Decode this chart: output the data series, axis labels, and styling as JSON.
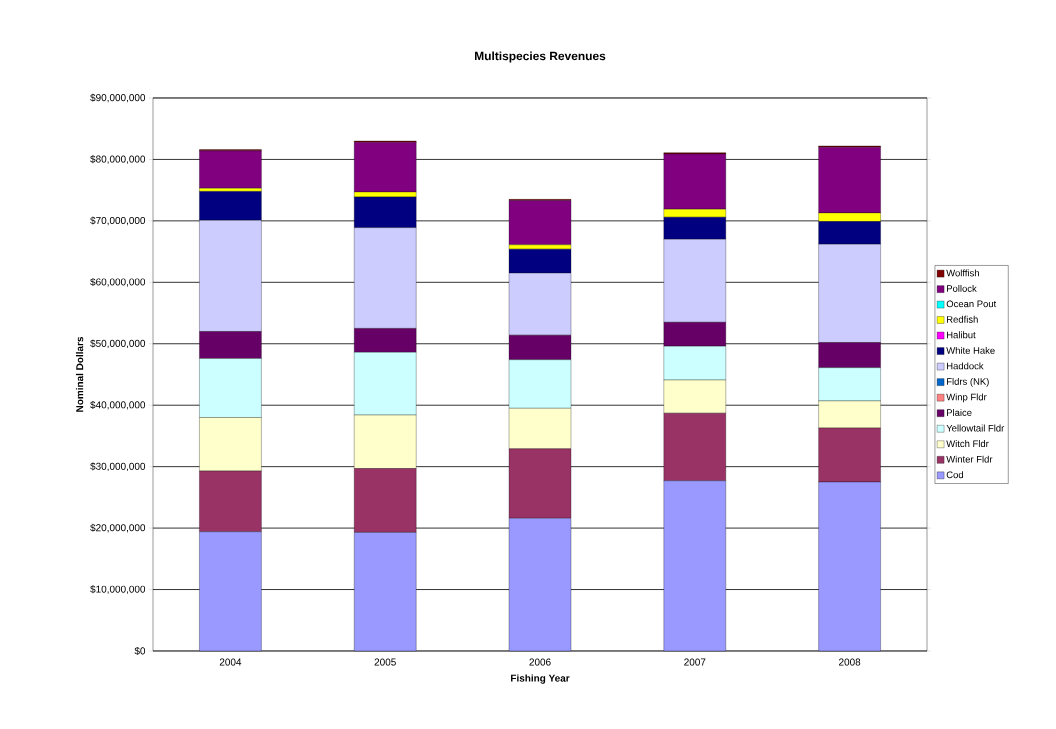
{
  "chart_data": {
    "type": "bar",
    "title": "Multispecies Revenues",
    "xlabel": "Fishing Year",
    "ylabel": "Nominal Dollars",
    "categories": [
      "2004",
      "2005",
      "2006",
      "2007",
      "2008"
    ],
    "stacked": true,
    "grid": "y",
    "legend": "right",
    "ylim": [
      0,
      90000000
    ],
    "yticks": [
      {
        "value": 0,
        "label": "$0"
      },
      {
        "value": 10000000,
        "label": "$10,000,000"
      },
      {
        "value": 20000000,
        "label": "$20,000,000"
      },
      {
        "value": 30000000,
        "label": "$30,000,000"
      },
      {
        "value": 40000000,
        "label": "$40,000,000"
      },
      {
        "value": 50000000,
        "label": "$50,000,000"
      },
      {
        "value": 60000000,
        "label": "$60,000,000"
      },
      {
        "value": 70000000,
        "label": "$70,000,000"
      },
      {
        "value": 80000000,
        "label": "$80,000,000"
      },
      {
        "value": 90000000,
        "label": "$90,000,000"
      }
    ],
    "series": [
      {
        "name": "Cod",
        "color": "#9999ff",
        "values": [
          19400000,
          19300000,
          21600000,
          27700000,
          27500000
        ]
      },
      {
        "name": "Winter Fldr",
        "color": "#993366",
        "values": [
          9900000,
          10400000,
          11300000,
          11000000,
          8800000
        ]
      },
      {
        "name": "Witch Fldr",
        "color": "#ffffcc",
        "values": [
          8700000,
          8700000,
          6600000,
          5400000,
          4400000
        ]
      },
      {
        "name": "Yellowtail Fldr",
        "color": "#ccffff",
        "values": [
          9600000,
          10200000,
          7900000,
          5500000,
          5400000
        ]
      },
      {
        "name": "Plaice",
        "color": "#660066",
        "values": [
          4400000,
          3900000,
          4000000,
          3900000,
          4100000
        ]
      },
      {
        "name": "Winp Fldr",
        "color": "#ff8080",
        "values": [
          0,
          0,
          0,
          0,
          0
        ]
      },
      {
        "name": "Fldrs (NK)",
        "color": "#0066cc",
        "values": [
          0,
          0,
          0,
          0,
          0
        ]
      },
      {
        "name": "Haddock",
        "color": "#ccccff",
        "values": [
          18100000,
          16400000,
          10100000,
          13500000,
          16000000
        ]
      },
      {
        "name": "White Hake",
        "color": "#000080",
        "values": [
          4700000,
          5000000,
          3900000,
          3600000,
          3700000
        ]
      },
      {
        "name": "Halibut",
        "color": "#ff00ff",
        "values": [
          0,
          0,
          0,
          0,
          0
        ]
      },
      {
        "name": "Redfish",
        "color": "#ffff00",
        "values": [
          500000,
          800000,
          700000,
          1300000,
          1400000
        ]
      },
      {
        "name": "Ocean Pout",
        "color": "#00ffff",
        "values": [
          0,
          0,
          0,
          0,
          0
        ]
      },
      {
        "name": "Pollock",
        "color": "#800080",
        "values": [
          6100000,
          8100000,
          7200000,
          9000000,
          10700000
        ]
      },
      {
        "name": "Wolffish",
        "color": "#800000",
        "values": [
          200000,
          200000,
          200000,
          200000,
          200000
        ]
      }
    ]
  }
}
